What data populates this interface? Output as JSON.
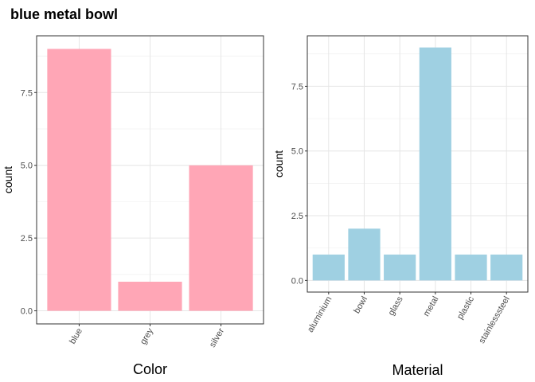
{
  "title": "blue metal bowl",
  "chart_data": [
    {
      "type": "bar",
      "categories": [
        "blue",
        "grey",
        "silver"
      ],
      "values": [
        9,
        1,
        5
      ],
      "xlabel": "Color",
      "ylabel": "count",
      "ylim": [
        -0.45,
        9.45
      ],
      "yticks": [
        0,
        2.5,
        5,
        7.5
      ],
      "ytick_labels": [
        "0.0",
        "2.5",
        "5.0",
        "7.5"
      ],
      "bar_color": "#ffa6b6",
      "grid": true
    },
    {
      "type": "bar",
      "categories": [
        "aluminium",
        "bowl",
        "glass",
        "metal",
        "plastic",
        "stainlesssteel"
      ],
      "values": [
        1,
        2,
        1,
        9,
        1,
        1
      ],
      "xlabel": "Material",
      "ylabel": "count",
      "ylim": [
        -0.45,
        9.45
      ],
      "yticks": [
        0,
        2.5,
        5,
        7.5
      ],
      "ytick_labels": [
        "0.0",
        "2.5",
        "5.0",
        "7.5"
      ],
      "bar_color": "#9fd0e2",
      "grid": true
    }
  ]
}
